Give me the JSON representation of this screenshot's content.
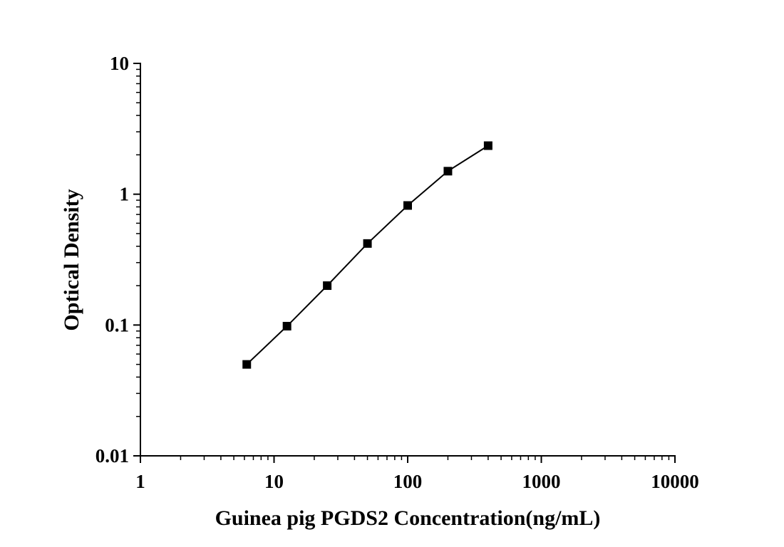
{
  "chart_data": {
    "type": "line",
    "title": "",
    "xlabel": "Guinea pig PGDS2 Concentration(ng/mL)",
    "ylabel": "Optical Density",
    "xscale": "log",
    "yscale": "log",
    "xlim": [
      1,
      10000
    ],
    "ylim": [
      0.01,
      10
    ],
    "x_ticks": [
      "1",
      "10",
      "100",
      "1000",
      "10000"
    ],
    "y_ticks": [
      "0.01",
      "0.1",
      "1",
      "10"
    ],
    "grid": false,
    "legend": "none",
    "marker": "square",
    "color": "#000000",
    "series": [
      {
        "x": [
          6.25,
          12.5,
          25,
          50,
          100,
          200,
          400
        ],
        "y": [
          0.05,
          0.098,
          0.2,
          0.42,
          0.82,
          1.5,
          2.35
        ]
      }
    ]
  }
}
